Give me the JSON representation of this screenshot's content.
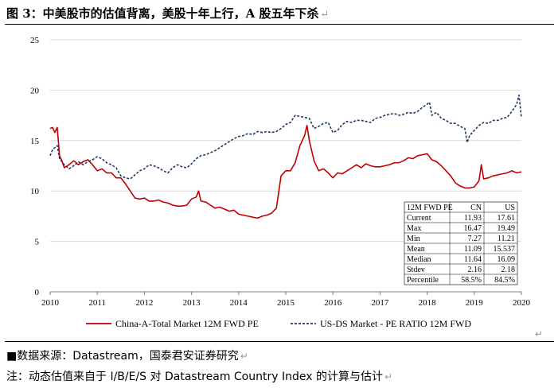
{
  "header": {
    "title": "图 3：中美股市的估值背离，美股十年上行，A 股五年下杀",
    "return_mark": "↵"
  },
  "footer": {
    "source": "■数据来源：Datastream，国泰君安证券研究",
    "note": "注：动态估值来自于 I/B/E/S 对 Datastream Country Index 的计算与估计",
    "return_mark": "↵"
  },
  "chart_data": {
    "type": "line",
    "xlim": [
      2010,
      2020
    ],
    "ylim": [
      0,
      25
    ],
    "x_ticks": [
      "2010",
      "2011",
      "2012",
      "2013",
      "2014",
      "2015",
      "2016",
      "2017",
      "2018",
      "2019",
      "2020"
    ],
    "y_ticks": [
      "0",
      "5",
      "10",
      "15",
      "20",
      "25"
    ],
    "grid": true,
    "legend_position": "bottom",
    "series": [
      {
        "name": "China-A-Total Market 12M FWD PE",
        "color": "#c00000",
        "style": "solid",
        "x": [
          2010.0,
          2010.05,
          2010.1,
          2010.15,
          2010.2,
          2010.25,
          2010.3,
          2010.4,
          2010.5,
          2010.6,
          2010.7,
          2010.8,
          2010.9,
          2011.0,
          2011.1,
          2011.2,
          2011.3,
          2011.4,
          2011.5,
          2011.6,
          2011.7,
          2011.8,
          2011.9,
          2012.0,
          2012.1,
          2012.2,
          2012.3,
          2012.4,
          2012.5,
          2012.6,
          2012.7,
          2012.8,
          2012.9,
          2013.0,
          2013.1,
          2013.15,
          2013.2,
          2013.3,
          2013.4,
          2013.5,
          2013.6,
          2013.7,
          2013.8,
          2013.9,
          2014.0,
          2014.1,
          2014.2,
          2014.3,
          2014.4,
          2014.5,
          2014.6,
          2014.7,
          2014.8,
          2014.9,
          2015.0,
          2015.1,
          2015.2,
          2015.3,
          2015.4,
          2015.45,
          2015.5,
          2015.6,
          2015.7,
          2015.8,
          2015.9,
          2016.0,
          2016.1,
          2016.2,
          2016.3,
          2016.4,
          2016.5,
          2016.6,
          2016.7,
          2016.8,
          2016.9,
          2017.0,
          2017.1,
          2017.2,
          2017.3,
          2017.4,
          2017.5,
          2017.6,
          2017.7,
          2017.8,
          2017.9,
          2018.0,
          2018.1,
          2018.2,
          2018.3,
          2018.4,
          2018.5,
          2018.6,
          2018.7,
          2018.8,
          2018.9,
          2019.0,
          2019.1,
          2019.15,
          2019.2,
          2019.3,
          2019.4,
          2019.5,
          2019.6,
          2019.7,
          2019.8,
          2019.9,
          2020.0
        ],
        "y": [
          16.2,
          16.3,
          15.8,
          16.3,
          13.5,
          13.0,
          12.3,
          12.6,
          13.0,
          12.6,
          12.9,
          13.1,
          12.6,
          12.0,
          12.2,
          11.8,
          11.8,
          11.3,
          11.3,
          10.7,
          10.0,
          9.3,
          9.2,
          9.3,
          9.0,
          9.0,
          9.1,
          8.9,
          8.8,
          8.6,
          8.5,
          8.5,
          8.6,
          9.2,
          9.4,
          10.0,
          9.0,
          8.9,
          8.6,
          8.3,
          8.4,
          8.2,
          8.0,
          8.1,
          7.7,
          7.6,
          7.5,
          7.4,
          7.3,
          7.5,
          7.6,
          7.8,
          8.3,
          11.5,
          12.0,
          12.0,
          12.8,
          14.5,
          15.5,
          16.5,
          15.0,
          13.0,
          12.0,
          12.2,
          11.8,
          11.3,
          11.8,
          11.7,
          12.0,
          12.3,
          12.6,
          12.3,
          12.7,
          12.5,
          12.4,
          12.4,
          12.5,
          12.6,
          12.8,
          12.8,
          13.0,
          13.3,
          13.2,
          13.5,
          13.6,
          13.7,
          13.1,
          12.9,
          12.5,
          12.0,
          11.5,
          10.8,
          10.5,
          10.3,
          10.3,
          10.4,
          11.0,
          12.6,
          11.2,
          11.3,
          11.5,
          11.6,
          11.7,
          11.8,
          12.0,
          11.8,
          11.9
        ]
      },
      {
        "name": "US-DS Market - PE RATIO 12M FWD",
        "color": "#1f3864",
        "style": "dashed",
        "x": [
          2010.0,
          2010.05,
          2010.1,
          2010.15,
          2010.2,
          2010.3,
          2010.4,
          2010.5,
          2010.6,
          2010.7,
          2010.8,
          2010.9,
          2011.0,
          2011.1,
          2011.2,
          2011.3,
          2011.4,
          2011.5,
          2011.6,
          2011.7,
          2011.8,
          2011.9,
          2012.0,
          2012.1,
          2012.2,
          2012.3,
          2012.4,
          2012.5,
          2012.6,
          2012.7,
          2012.8,
          2012.9,
          2013.0,
          2013.1,
          2013.2,
          2013.3,
          2013.4,
          2013.5,
          2013.6,
          2013.7,
          2013.8,
          2013.9,
          2014.0,
          2014.1,
          2014.2,
          2014.3,
          2014.4,
          2014.5,
          2014.6,
          2014.7,
          2014.8,
          2014.9,
          2015.0,
          2015.1,
          2015.2,
          2015.3,
          2015.4,
          2015.5,
          2015.6,
          2015.7,
          2015.8,
          2015.9,
          2016.0,
          2016.1,
          2016.2,
          2016.3,
          2016.4,
          2016.5,
          2016.6,
          2016.7,
          2016.8,
          2016.9,
          2017.0,
          2017.1,
          2017.2,
          2017.3,
          2017.4,
          2017.5,
          2017.6,
          2017.7,
          2017.8,
          2017.9,
          2018.0,
          2018.05,
          2018.1,
          2018.2,
          2018.3,
          2018.4,
          2018.5,
          2018.6,
          2018.7,
          2018.8,
          2018.85,
          2018.9,
          2019.0,
          2019.1,
          2019.2,
          2019.3,
          2019.4,
          2019.5,
          2019.6,
          2019.7,
          2019.8,
          2019.9,
          2019.95,
          2020.0
        ],
        "y": [
          13.5,
          14.1,
          14.3,
          14.5,
          13.2,
          12.6,
          12.2,
          12.5,
          12.9,
          12.6,
          12.9,
          13.1,
          13.4,
          13.2,
          12.8,
          12.6,
          12.3,
          11.5,
          11.3,
          11.2,
          11.6,
          12.0,
          12.2,
          12.6,
          12.5,
          12.3,
          12.0,
          11.8,
          12.3,
          12.6,
          12.4,
          12.3,
          12.7,
          13.2,
          13.5,
          13.6,
          13.8,
          14.0,
          14.3,
          14.6,
          14.9,
          15.2,
          15.4,
          15.5,
          15.7,
          15.6,
          15.9,
          15.8,
          15.9,
          15.8,
          15.9,
          16.2,
          16.6,
          16.8,
          17.5,
          17.4,
          17.3,
          17.2,
          16.2,
          16.4,
          16.7,
          16.8,
          15.8,
          16.0,
          16.6,
          16.9,
          16.8,
          17.0,
          17.0,
          16.9,
          16.8,
          17.2,
          17.3,
          17.5,
          17.6,
          17.7,
          17.5,
          17.6,
          17.8,
          17.7,
          17.9,
          18.3,
          18.6,
          18.8,
          17.5,
          17.8,
          17.2,
          17.0,
          16.7,
          16.7,
          16.4,
          16.2,
          14.8,
          15.5,
          16.0,
          16.5,
          16.8,
          16.7,
          17.0,
          17.0,
          17.2,
          17.3,
          17.9,
          18.6,
          19.5,
          17.3
        ]
      }
    ],
    "table": {
      "header": [
        "12M FWD PE",
        "CN",
        "US"
      ],
      "rows": [
        [
          "Current",
          "11.93",
          "17.61"
        ],
        [
          "Max",
          "16.47",
          "19.49"
        ],
        [
          "Min",
          "7.27",
          "11.21"
        ],
        [
          "Mean",
          "11.09",
          "15.537"
        ],
        [
          "Median",
          "11.64",
          "16.09"
        ],
        [
          "Stdev",
          "2.16",
          "2.18"
        ],
        [
          "Percentile",
          "58.5%",
          "84.5%"
        ]
      ],
      "cn_color": "#c00000"
    }
  }
}
